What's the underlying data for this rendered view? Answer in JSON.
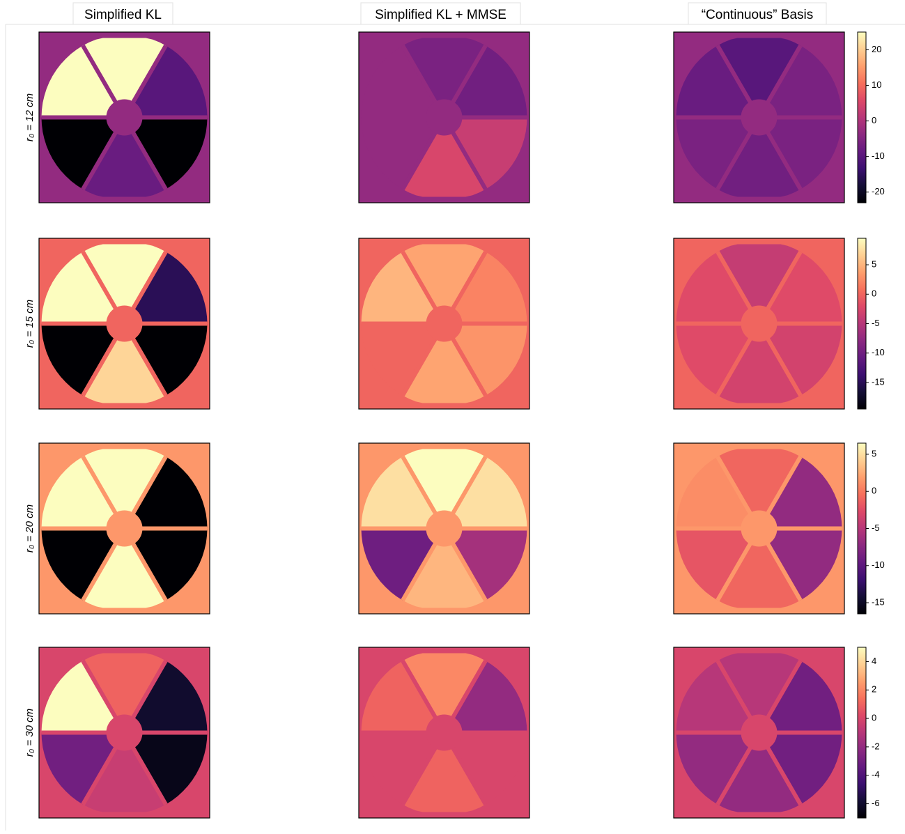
{
  "columns": [
    "Simplified KL",
    "Simplified KL + MMSE",
    "“Continuous” Basis"
  ],
  "colormap": "magma",
  "rows": [
    {
      "label": "r₀ = 12 cm",
      "colorbar": {
        "lim": [
          -23,
          25
        ],
        "ticks": [
          -20,
          -10,
          0,
          10,
          20
        ]
      },
      "panels": [
        {
          "background": -3,
          "segments": [
            25,
            25,
            -10,
            -23,
            -8,
            -23
          ]
        },
        {
          "background": -3,
          "segments": [
            -3,
            -6,
            -7,
            3,
            5,
            -3
          ]
        },
        {
          "background": -3,
          "segments": [
            -8,
            -10,
            -6,
            -6,
            -7,
            -6
          ]
        }
      ]
    },
    {
      "label": "r₀ = 15 cm",
      "colorbar": {
        "lim": [
          -19.5,
          9.5
        ],
        "ticks": [
          -15,
          -10,
          -5,
          0,
          5
        ]
      },
      "panels": [
        {
          "background": 0,
          "segments": [
            9.5,
            9.5,
            -15,
            -19.5,
            7,
            -19.5
          ]
        },
        {
          "background": 0,
          "segments": [
            5,
            4,
            2,
            3,
            4,
            0
          ]
        },
        {
          "background": 0,
          "segments": [
            -2,
            -4,
            -2,
            -3,
            -3,
            -2
          ]
        }
      ]
    },
    {
      "label": "r₀ = 20 cm",
      "colorbar": {
        "lim": [
          -16.5,
          6.5
        ],
        "ticks": [
          -15,
          -10,
          -5,
          0,
          5
        ]
      },
      "panels": [
        {
          "background": 1.5,
          "segments": [
            6.5,
            6.5,
            -16.5,
            -16.5,
            6.5,
            -16.5
          ]
        },
        {
          "background": 1.5,
          "segments": [
            5,
            6.5,
            5,
            -6,
            3,
            -9
          ]
        },
        {
          "background": 1.5,
          "segments": [
            1,
            -1,
            -7,
            -7,
            -1,
            -2
          ]
        }
      ]
    },
    {
      "label": "r₀ = 30 cm",
      "colorbar": {
        "lim": [
          -7,
          5
        ],
        "ticks": [
          -6,
          -4,
          -2,
          0,
          2,
          4
        ]
      },
      "panels": [
        {
          "background": 0,
          "segments": [
            5,
            1,
            -6,
            -6.5,
            -0.5,
            -3
          ]
        },
        {
          "background": 0,
          "segments": [
            1,
            2,
            -2,
            0,
            1,
            0
          ]
        },
        {
          "background": 0,
          "segments": [
            -1,
            -1,
            -3,
            -3,
            -2,
            -2
          ]
        }
      ]
    }
  ]
}
